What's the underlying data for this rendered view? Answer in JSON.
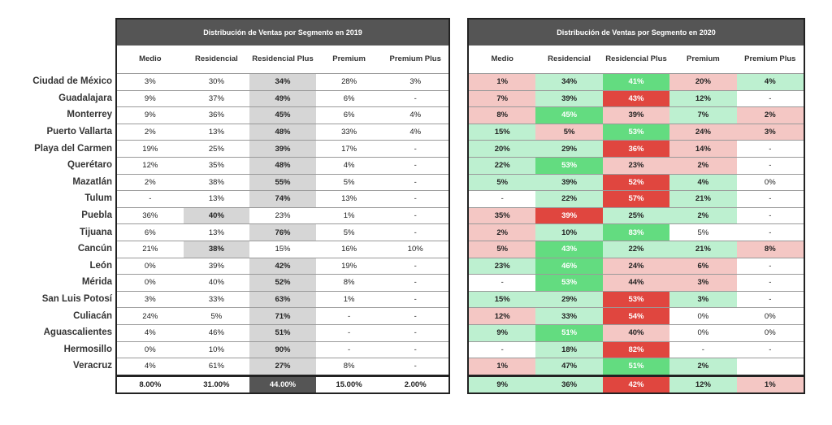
{
  "row_labels": [
    "Ciudad de México",
    "Guadalajara",
    "Monterrey",
    "Puerto Vallarta",
    "Playa del Carmen",
    "Querétaro",
    "Mazatlán",
    "Tulum",
    "Puebla",
    "Tijuana",
    "Cancún",
    "León",
    "Mérida",
    "San Luis Potosí",
    "Culiacán",
    "Aguascalientes",
    "Hermosillo",
    "Veracruz"
  ],
  "tables": [
    {
      "title": "Distribución de Ventas por Segmento en 2019",
      "columns": [
        "Medio",
        "Residencial",
        "Residencial Plus",
        "Premium",
        "Premium Plus"
      ],
      "rows": [
        [
          "3%",
          "30%",
          "34%",
          "28%",
          "3%"
        ],
        [
          "9%",
          "37%",
          "49%",
          "6%",
          "-"
        ],
        [
          "9%",
          "36%",
          "45%",
          "6%",
          "4%"
        ],
        [
          "2%",
          "13%",
          "48%",
          "33%",
          "4%"
        ],
        [
          "19%",
          "25%",
          "39%",
          "17%",
          "-"
        ],
        [
          "12%",
          "35%",
          "48%",
          "4%",
          "-"
        ],
        [
          "2%",
          "38%",
          "55%",
          "5%",
          "-"
        ],
        [
          "-",
          "13%",
          "74%",
          "13%",
          "-"
        ],
        [
          "36%",
          "40%",
          "23%",
          "1%",
          "-"
        ],
        [
          "6%",
          "13%",
          "76%",
          "5%",
          "-"
        ],
        [
          "21%",
          "38%",
          "15%",
          "16%",
          "10%"
        ],
        [
          "0%",
          "39%",
          "42%",
          "19%",
          "-"
        ],
        [
          "0%",
          "40%",
          "52%",
          "8%",
          "-"
        ],
        [
          "3%",
          "33%",
          "63%",
          "1%",
          "-"
        ],
        [
          "24%",
          "5%",
          "71%",
          "-",
          "-"
        ],
        [
          "4%",
          "46%",
          "51%",
          "-",
          "-"
        ],
        [
          "0%",
          "10%",
          "90%",
          "-",
          "-"
        ],
        [
          "4%",
          "61%",
          "27%",
          "8%",
          "-"
        ]
      ],
      "cell_colors": [
        [
          "#fff",
          "#fff",
          "#d6d6d6",
          "#fff",
          "#fff"
        ],
        [
          "#fff",
          "#fff",
          "#d6d6d6",
          "#fff",
          "#fff"
        ],
        [
          "#fff",
          "#fff",
          "#d6d6d6",
          "#fff",
          "#fff"
        ],
        [
          "#fff",
          "#fff",
          "#d6d6d6",
          "#fff",
          "#fff"
        ],
        [
          "#fff",
          "#fff",
          "#d6d6d6",
          "#fff",
          "#fff"
        ],
        [
          "#fff",
          "#fff",
          "#d6d6d6",
          "#fff",
          "#fff"
        ],
        [
          "#fff",
          "#fff",
          "#d6d6d6",
          "#fff",
          "#fff"
        ],
        [
          "#fff",
          "#fff",
          "#d6d6d6",
          "#fff",
          "#fff"
        ],
        [
          "#fff",
          "#d6d6d6",
          "#fff",
          "#fff",
          "#fff"
        ],
        [
          "#fff",
          "#fff",
          "#d6d6d6",
          "#fff",
          "#fff"
        ],
        [
          "#fff",
          "#d6d6d6",
          "#fff",
          "#fff",
          "#fff"
        ],
        [
          "#fff",
          "#fff",
          "#d6d6d6",
          "#fff",
          "#fff"
        ],
        [
          "#fff",
          "#fff",
          "#d6d6d6",
          "#fff",
          "#fff"
        ],
        [
          "#fff",
          "#fff",
          "#d6d6d6",
          "#fff",
          "#fff"
        ],
        [
          "#fff",
          "#fff",
          "#d6d6d6",
          "#fff",
          "#fff"
        ],
        [
          "#fff",
          "#fff",
          "#d6d6d6",
          "#fff",
          "#fff"
        ],
        [
          "#fff",
          "#fff",
          "#d6d6d6",
          "#fff",
          "#fff"
        ],
        [
          "#fff",
          "#fff",
          "#d6d6d6",
          "#fff",
          "#fff"
        ]
      ],
      "totals": [
        "8.00%",
        "31.00%",
        "44.00%",
        "15.00%",
        "2.00%"
      ],
      "total_colors": [
        "#fff",
        "#fff",
        "#555555",
        "#fff",
        "#fff"
      ]
    },
    {
      "title": "Distribución de Ventas por Segmento en 2020",
      "columns": [
        "Medio",
        "Residencial",
        "Residencial Plus",
        "Premium",
        "Premium Plus"
      ],
      "rows": [
        [
          "1%",
          "34%",
          "41%",
          "20%",
          "4%"
        ],
        [
          "7%",
          "39%",
          "43%",
          "12%",
          "-"
        ],
        [
          "8%",
          "45%",
          "39%",
          "7%",
          "2%"
        ],
        [
          "15%",
          "5%",
          "53%",
          "24%",
          "3%"
        ],
        [
          "20%",
          "29%",
          "36%",
          "14%",
          "-"
        ],
        [
          "22%",
          "53%",
          "23%",
          "2%",
          "-"
        ],
        [
          "5%",
          "39%",
          "52%",
          "4%",
          "0%"
        ],
        [
          "-",
          "22%",
          "57%",
          "21%",
          "-"
        ],
        [
          "35%",
          "39%",
          "25%",
          "2%",
          "-"
        ],
        [
          "2%",
          "10%",
          "83%",
          "5%",
          "-"
        ],
        [
          "5%",
          "43%",
          "22%",
          "21%",
          "8%"
        ],
        [
          "23%",
          "46%",
          "24%",
          "6%",
          "-"
        ],
        [
          "-",
          "53%",
          "44%",
          "3%",
          "-"
        ],
        [
          "15%",
          "29%",
          "53%",
          "3%",
          "-"
        ],
        [
          "12%",
          "33%",
          "54%",
          "0%",
          "0%"
        ],
        [
          "9%",
          "51%",
          "40%",
          "0%",
          "0%"
        ],
        [
          "-",
          "18%",
          "82%",
          "-",
          "-"
        ],
        [
          "1%",
          "47%",
          "51%",
          "2%",
          null
        ]
      ],
      "cell_colors": [
        [
          "#f4c7c4",
          "#bdf0d0",
          "#63dc80",
          "#f4c7c4",
          "#bdf0d0"
        ],
        [
          "#f4c7c4",
          "#bdf0d0",
          "#e0463f",
          "#bdf0d0",
          "#fff"
        ],
        [
          "#f4c7c4",
          "#63dc80",
          "#f4c7c4",
          "#bdf0d0",
          "#f4c7c4"
        ],
        [
          "#bdf0d0",
          "#f4c7c4",
          "#63dc80",
          "#f4c7c4",
          "#f4c7c4"
        ],
        [
          "#bdf0d0",
          "#bdf0d0",
          "#e0463f",
          "#f4c7c4",
          "#fff"
        ],
        [
          "#bdf0d0",
          "#63dc80",
          "#f4c7c4",
          "#f4c7c4",
          "#fff"
        ],
        [
          "#bdf0d0",
          "#bdf0d0",
          "#e0463f",
          "#bdf0d0",
          "#fff"
        ],
        [
          "#fff",
          "#bdf0d0",
          "#e0463f",
          "#bdf0d0",
          "#fff"
        ],
        [
          "#f4c7c4",
          "#e0463f",
          "#bdf0d0",
          "#bdf0d0",
          "#fff"
        ],
        [
          "#f4c7c4",
          "#bdf0d0",
          "#63dc80",
          "#fff",
          "#fff"
        ],
        [
          "#f4c7c4",
          "#63dc80",
          "#bdf0d0",
          "#bdf0d0",
          "#f4c7c4"
        ],
        [
          "#bdf0d0",
          "#63dc80",
          "#f4c7c4",
          "#f4c7c4",
          "#fff"
        ],
        [
          "#fff",
          "#63dc80",
          "#f4c7c4",
          "#f4c7c4",
          "#fff"
        ],
        [
          "#bdf0d0",
          "#bdf0d0",
          "#e0463f",
          "#bdf0d0",
          "#fff"
        ],
        [
          "#f4c7c4",
          "#bdf0d0",
          "#e0463f",
          "#fff",
          "#fff"
        ],
        [
          "#bdf0d0",
          "#63dc80",
          "#f4c7c4",
          "#fff",
          "#fff"
        ],
        [
          "#fff",
          "#bdf0d0",
          "#e0463f",
          "#fff",
          "#fff"
        ],
        [
          "#f4c7c4",
          "#bdf0d0",
          "#63dc80",
          "#bdf0d0",
          "#fff"
        ]
      ],
      "totals": [
        "9%",
        "36%",
        "42%",
        "12%",
        "1%"
      ],
      "total_colors": [
        "#bdf0d0",
        "#bdf0d0",
        "#e0463f",
        "#bdf0d0",
        "#f4c7c4"
      ]
    }
  ]
}
